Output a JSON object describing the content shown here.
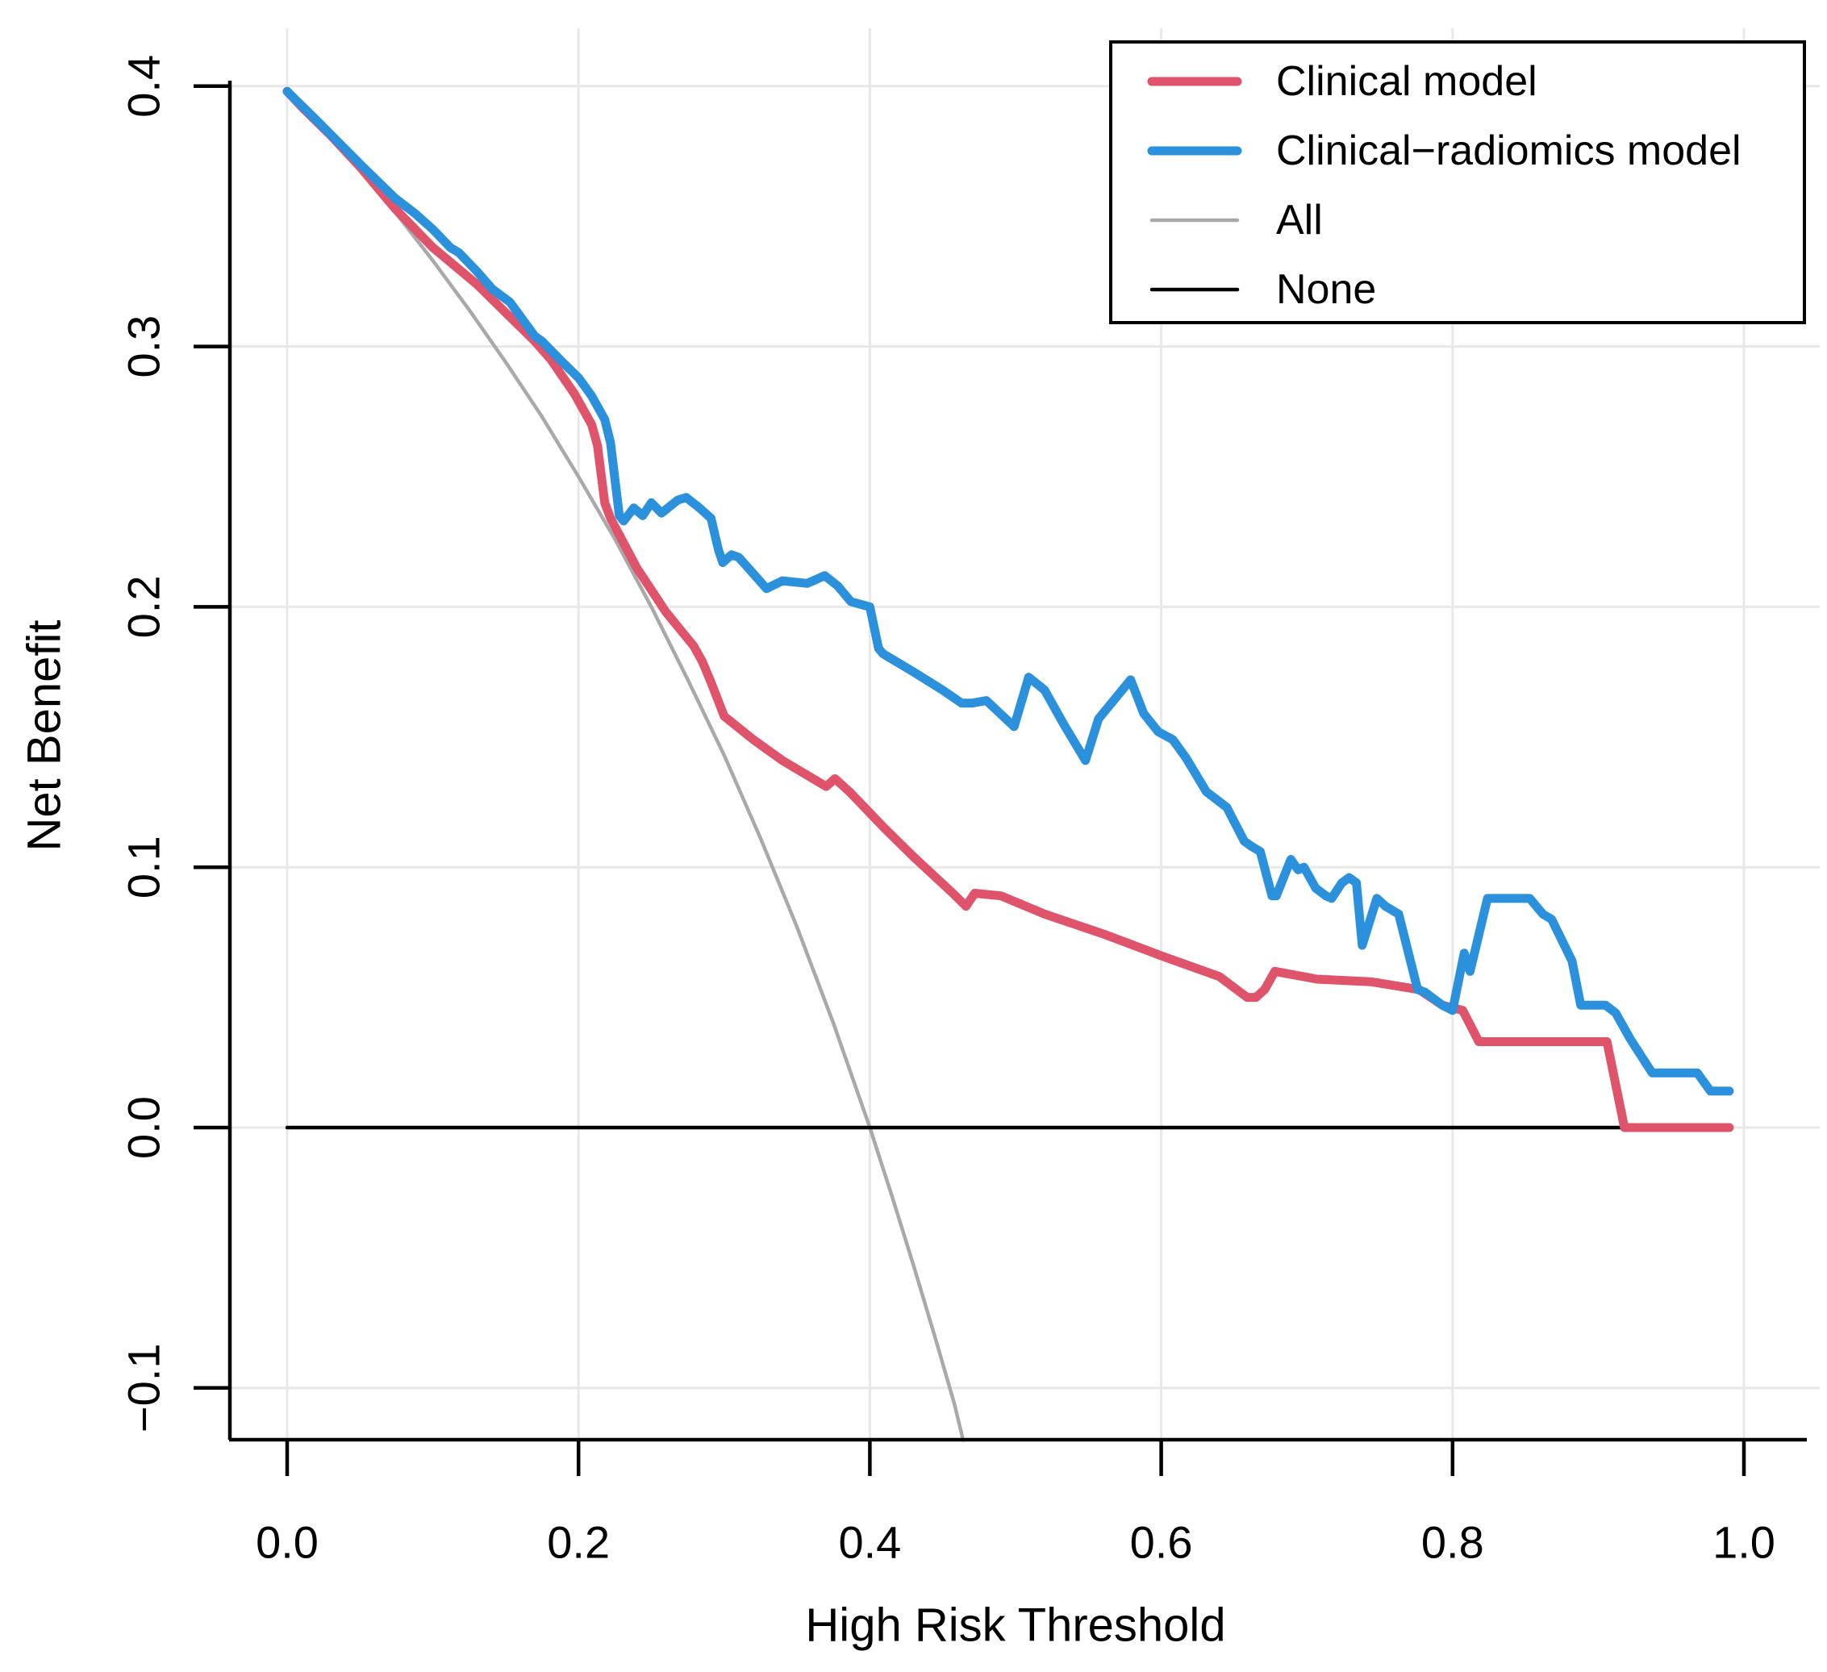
{
  "chart_data": {
    "type": "line",
    "title": "",
    "xlabel": "High Risk Threshold",
    "ylabel": "Net Benefit",
    "xlim": [
      0,
      1
    ],
    "ylim": [
      -0.12,
      0.4
    ],
    "grid": true,
    "legend_position": "top-right",
    "background": "#ffffff",
    "grid_color": "#e8e8e8",
    "axis_color": "#000000",
    "x_ticks": {
      "values": [
        0,
        0.2,
        0.4,
        0.6,
        0.8,
        1.0
      ],
      "labels": [
        "0.0",
        "0.2",
        "0.4",
        "0.6",
        "0.8",
        "1.0"
      ]
    },
    "y_ticks": {
      "values": [
        -0.1,
        0.0,
        0.1,
        0.2,
        0.3,
        0.4
      ],
      "labels": [
        "−0.1",
        "0.0",
        "0.1",
        "0.2",
        "0.3",
        "0.4"
      ]
    },
    "series": [
      {
        "name": "Clinical model",
        "color": "#DF536B",
        "width": 11,
        "legend_sample_width": 11,
        "points": [
          [
            0.0,
            0.398
          ],
          [
            0.01,
            0.392
          ],
          [
            0.03,
            0.381
          ],
          [
            0.05,
            0.369
          ],
          [
            0.074,
            0.353
          ],
          [
            0.1,
            0.338
          ],
          [
            0.13,
            0.324
          ],
          [
            0.17,
            0.302
          ],
          [
            0.181,
            0.295
          ],
          [
            0.197,
            0.282
          ],
          [
            0.209,
            0.27
          ],
          [
            0.213,
            0.262
          ],
          [
            0.218,
            0.24
          ],
          [
            0.222,
            0.234
          ],
          [
            0.24,
            0.215
          ],
          [
            0.26,
            0.198
          ],
          [
            0.279,
            0.185
          ],
          [
            0.285,
            0.179
          ],
          [
            0.291,
            0.171
          ],
          [
            0.3,
            0.158
          ],
          [
            0.32,
            0.149
          ],
          [
            0.34,
            0.141
          ],
          [
            0.355,
            0.136
          ],
          [
            0.37,
            0.131
          ],
          [
            0.376,
            0.134
          ],
          [
            0.386,
            0.129
          ],
          [
            0.41,
            0.115
          ],
          [
            0.43,
            0.104
          ],
          [
            0.457,
            0.09
          ],
          [
            0.466,
            0.085
          ],
          [
            0.472,
            0.09
          ],
          [
            0.49,
            0.089
          ],
          [
            0.52,
            0.082
          ],
          [
            0.562,
            0.074
          ],
          [
            0.6,
            0.066
          ],
          [
            0.64,
            0.058
          ],
          [
            0.659,
            0.05
          ],
          [
            0.665,
            0.05
          ],
          [
            0.671,
            0.053
          ],
          [
            0.678,
            0.06
          ],
          [
            0.707,
            0.057
          ],
          [
            0.744,
            0.056
          ],
          [
            0.777,
            0.053
          ],
          [
            0.793,
            0.047
          ],
          [
            0.807,
            0.045
          ],
          [
            0.818,
            0.033
          ],
          [
            0.828,
            0.033
          ],
          [
            0.906,
            0.033
          ],
          [
            0.918,
            0.0
          ],
          [
            0.99,
            0.0
          ]
        ]
      },
      {
        "name": "Clinical−radiomics model",
        "color": "#2B91DC",
        "width": 11,
        "legend_sample_width": 11,
        "points": [
          [
            0.0,
            0.398
          ],
          [
            0.02,
            0.387
          ],
          [
            0.052,
            0.369
          ],
          [
            0.074,
            0.357
          ],
          [
            0.088,
            0.351
          ],
          [
            0.1,
            0.345
          ],
          [
            0.112,
            0.338
          ],
          [
            0.118,
            0.336
          ],
          [
            0.13,
            0.329
          ],
          [
            0.141,
            0.322
          ],
          [
            0.153,
            0.317
          ],
          [
            0.17,
            0.304
          ],
          [
            0.175,
            0.302
          ],
          [
            0.189,
            0.294
          ],
          [
            0.2,
            0.288
          ],
          [
            0.209,
            0.281
          ],
          [
            0.218,
            0.272
          ],
          [
            0.222,
            0.263
          ],
          [
            0.228,
            0.235
          ],
          [
            0.231,
            0.233
          ],
          [
            0.238,
            0.238
          ],
          [
            0.244,
            0.235
          ],
          [
            0.25,
            0.24
          ],
          [
            0.257,
            0.236
          ],
          [
            0.268,
            0.241
          ],
          [
            0.274,
            0.242
          ],
          [
            0.283,
            0.238
          ],
          [
            0.291,
            0.234
          ],
          [
            0.296,
            0.222
          ],
          [
            0.299,
            0.217
          ],
          [
            0.305,
            0.22
          ],
          [
            0.31,
            0.219
          ],
          [
            0.318,
            0.214
          ],
          [
            0.329,
            0.207
          ],
          [
            0.34,
            0.21
          ],
          [
            0.357,
            0.209
          ],
          [
            0.369,
            0.212
          ],
          [
            0.378,
            0.208
          ],
          [
            0.387,
            0.202
          ],
          [
            0.4,
            0.2
          ],
          [
            0.406,
            0.184
          ],
          [
            0.409,
            0.182
          ],
          [
            0.43,
            0.175
          ],
          [
            0.45,
            0.168
          ],
          [
            0.463,
            0.163
          ],
          [
            0.47,
            0.163
          ],
          [
            0.48,
            0.164
          ],
          [
            0.499,
            0.154
          ],
          [
            0.509,
            0.173
          ],
          [
            0.52,
            0.168
          ],
          [
            0.533,
            0.155
          ],
          [
            0.548,
            0.141
          ],
          [
            0.557,
            0.157
          ],
          [
            0.579,
            0.172
          ],
          [
            0.588,
            0.159
          ],
          [
            0.598,
            0.152
          ],
          [
            0.608,
            0.149
          ],
          [
            0.617,
            0.142
          ],
          [
            0.631,
            0.129
          ],
          [
            0.645,
            0.123
          ],
          [
            0.657,
            0.11
          ],
          [
            0.662,
            0.108
          ],
          [
            0.668,
            0.106
          ],
          [
            0.676,
            0.089
          ],
          [
            0.679,
            0.089
          ],
          [
            0.689,
            0.103
          ],
          [
            0.694,
            0.099
          ],
          [
            0.698,
            0.1
          ],
          [
            0.706,
            0.092
          ],
          [
            0.713,
            0.089
          ],
          [
            0.717,
            0.088
          ],
          [
            0.724,
            0.094
          ],
          [
            0.729,
            0.096
          ],
          [
            0.734,
            0.094
          ],
          [
            0.738,
            0.07
          ],
          [
            0.748,
            0.088
          ],
          [
            0.754,
            0.085
          ],
          [
            0.763,
            0.082
          ],
          [
            0.776,
            0.053
          ],
          [
            0.781,
            0.052
          ],
          [
            0.793,
            0.047
          ],
          [
            0.8,
            0.045
          ],
          [
            0.808,
            0.067
          ],
          [
            0.812,
            0.06
          ],
          [
            0.824,
            0.088
          ],
          [
            0.853,
            0.088
          ],
          [
            0.862,
            0.082
          ],
          [
            0.868,
            0.08
          ],
          [
            0.882,
            0.064
          ],
          [
            0.888,
            0.047
          ],
          [
            0.905,
            0.047
          ],
          [
            0.912,
            0.044
          ],
          [
            0.922,
            0.034
          ],
          [
            0.937,
            0.021
          ],
          [
            0.968,
            0.021
          ],
          [
            0.977,
            0.014
          ],
          [
            0.99,
            0.014
          ]
        ]
      },
      {
        "name": "All",
        "color": "#A9A9A9",
        "width": 4.5,
        "legend_sample_width": 4.5,
        "points": [
          [
            0.0,
            0.398
          ],
          [
            0.025,
            0.385
          ],
          [
            0.05,
            0.368
          ],
          [
            0.075,
            0.351
          ],
          [
            0.1,
            0.333
          ],
          [
            0.125,
            0.314
          ],
          [
            0.15,
            0.294
          ],
          [
            0.175,
            0.273
          ],
          [
            0.2,
            0.25
          ],
          [
            0.225,
            0.226
          ],
          [
            0.25,
            0.2
          ],
          [
            0.275,
            0.172
          ],
          [
            0.3,
            0.143
          ],
          [
            0.325,
            0.111
          ],
          [
            0.35,
            0.077
          ],
          [
            0.375,
            0.04
          ],
          [
            0.4,
            0.0
          ],
          [
            0.415,
            -0.026
          ],
          [
            0.43,
            -0.053
          ],
          [
            0.445,
            -0.081
          ],
          [
            0.458,
            -0.106
          ],
          [
            0.464,
            -0.12
          ]
        ]
      },
      {
        "name": "None",
        "color": "#000000",
        "width": 4.5,
        "legend_sample_width": 4.5,
        "points": [
          [
            0.0,
            0.0
          ],
          [
            0.99,
            0.0
          ]
        ]
      }
    ]
  }
}
